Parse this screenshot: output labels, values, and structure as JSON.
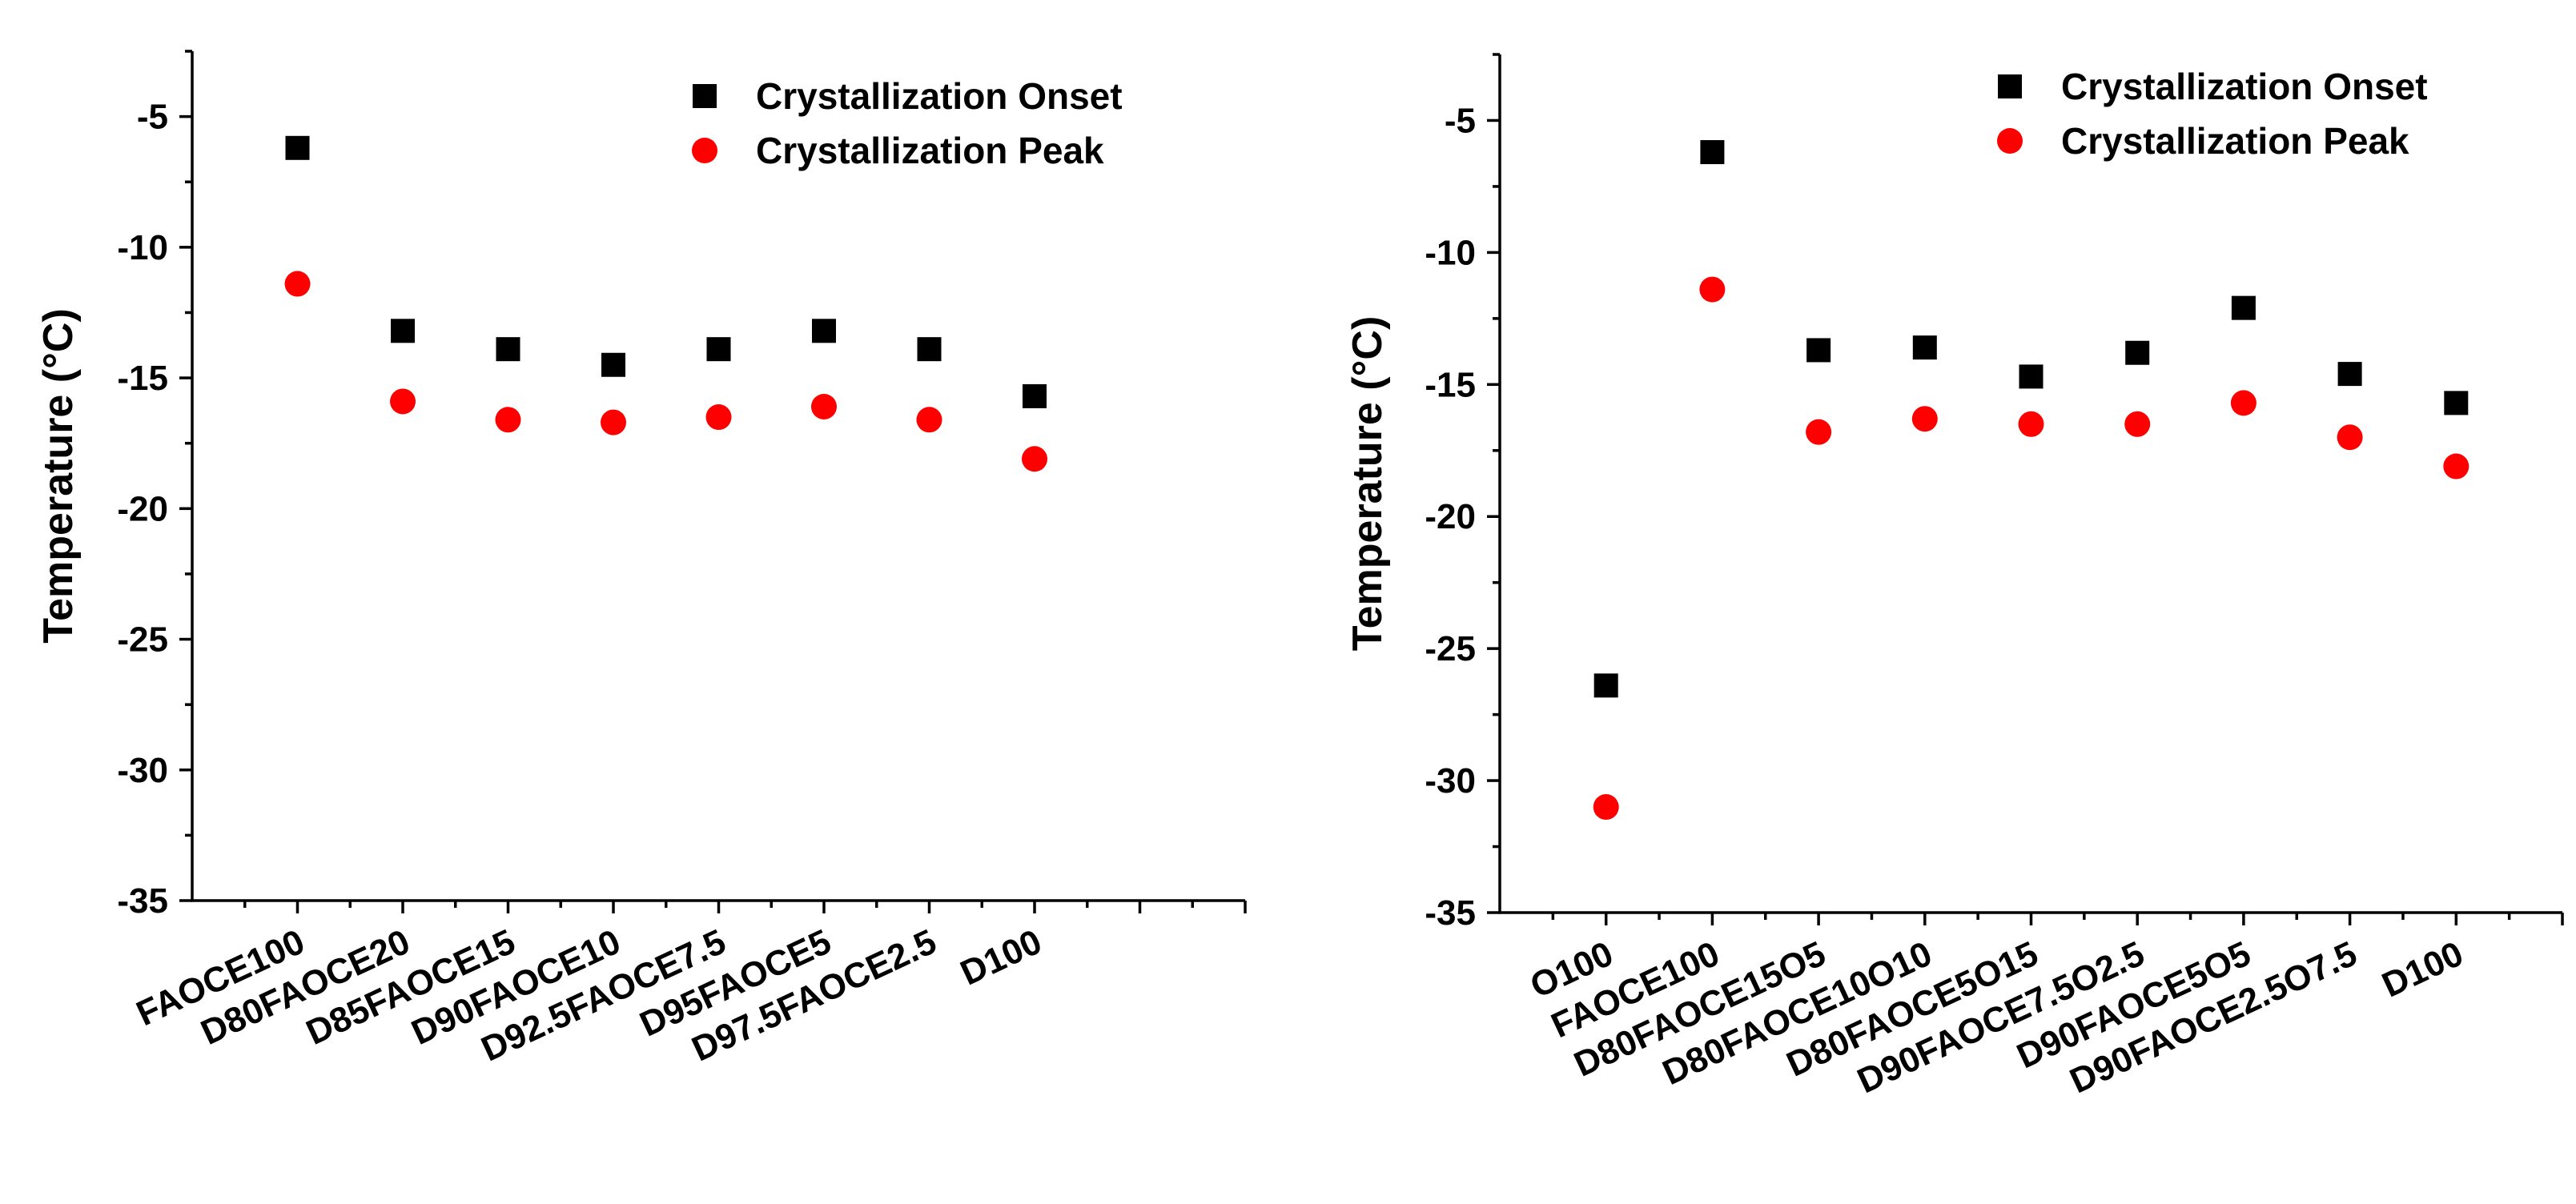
{
  "chart_data": [
    {
      "type": "scatter",
      "title": "",
      "xlabel": "",
      "ylabel": "Temperature (°C)",
      "ylim": [
        -35,
        -2.5
      ],
      "yticks": [
        -35,
        -30,
        -25,
        -20,
        -15,
        -10,
        -5
      ],
      "grid": false,
      "legend_position": "top-right",
      "categories": [
        "FAOCE100",
        "D80FAOCE20",
        "D85FAOCE15",
        "D90FAOCE10",
        "D92.5FAOCE7.5",
        "D95FAOCE5",
        "D97.5FAOCE2.5",
        "D100"
      ],
      "x_slots": 10,
      "series": [
        {
          "name": "Crystallization Onset",
          "marker": "square",
          "color": "#000000",
          "values": [
            -6.2,
            -13.2,
            -13.9,
            -14.5,
            -13.9,
            -13.2,
            -13.9,
            -15.7
          ]
        },
        {
          "name": "Crystallization Peak",
          "marker": "circle",
          "color": "#ff0000",
          "values": [
            -11.4,
            -15.9,
            -16.6,
            -16.7,
            -16.5,
            -16.1,
            -16.6,
            -18.1
          ]
        }
      ]
    },
    {
      "type": "scatter",
      "title": "",
      "xlabel": "",
      "ylabel": "Temperature (°C)",
      "ylim": [
        -35,
        -2.5
      ],
      "yticks": [
        -35,
        -30,
        -25,
        -20,
        -15,
        -10,
        -5
      ],
      "grid": false,
      "legend_position": "top-right",
      "categories": [
        "O100",
        "FAOCE100",
        "D80FAOCE15O5",
        "D80FAOCE10O10",
        "D80FAOCE5O15",
        "D90FAOCE7.5O2.5",
        "D90FAOCE5O5",
        "D90FAOCE2.5O7.5",
        "D100"
      ],
      "x_slots": 10,
      "series": [
        {
          "name": "Crystallization Onset",
          "marker": "square",
          "color": "#000000",
          "values": [
            -26.4,
            -6.2,
            -13.7,
            -13.6,
            -14.7,
            -13.8,
            -12.1,
            -14.6,
            -15.7
          ]
        },
        {
          "name": "Crystallization Peak",
          "marker": "circle",
          "color": "#ff0000",
          "values": [
            -31.0,
            -11.4,
            -16.8,
            -16.3,
            -16.5,
            -16.5,
            -15.7,
            -17.0,
            -18.1
          ]
        }
      ]
    }
  ]
}
